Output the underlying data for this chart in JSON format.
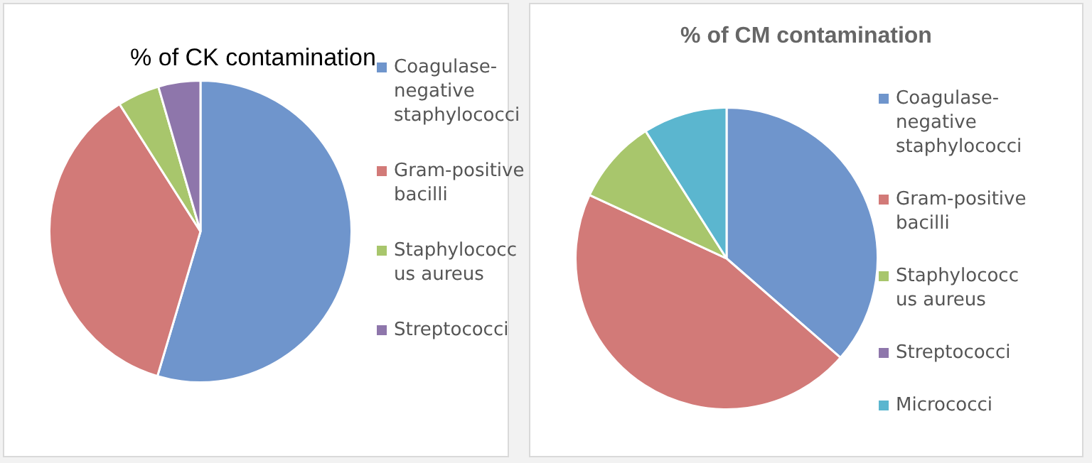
{
  "chart_data": [
    {
      "type": "pie",
      "title": "% of CK contamination",
      "categories": [
        "Coagulase-negative staphylococci",
        "Gram-positive bacilli",
        "Staphylococcus aureus",
        "Streptococci"
      ],
      "values": [
        54.6,
        36.4,
        4.5,
        4.5
      ],
      "colors": [
        "#6f95cc",
        "#d27a78",
        "#a8c66c",
        "#8e76ab"
      ],
      "legend": "right"
    },
    {
      "type": "pie",
      "title": "% of CM contamination",
      "categories": [
        "Coagulase-negative staphylococci",
        "Gram-positive bacilli",
        "Staphylococcus aureus",
        "Streptococci",
        "Micrococci"
      ],
      "values": [
        36.4,
        45.5,
        9.1,
        0,
        9.0
      ],
      "colors": [
        "#6f95cc",
        "#d27a78",
        "#a8c66c",
        "#8e76ab",
        "#5bb6cf"
      ],
      "legend": "right"
    }
  ]
}
